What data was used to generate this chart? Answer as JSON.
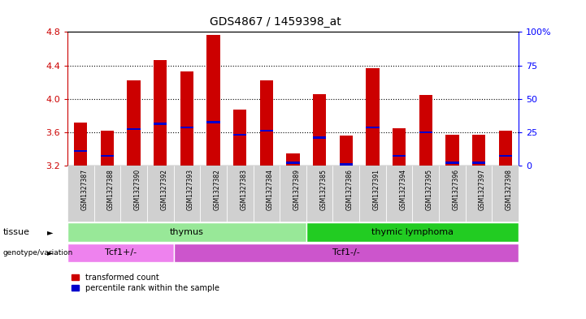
{
  "title": "GDS4867 / 1459398_at",
  "samples": [
    "GSM1327387",
    "GSM1327388",
    "GSM1327390",
    "GSM1327392",
    "GSM1327393",
    "GSM1327382",
    "GSM1327383",
    "GSM1327384",
    "GSM1327389",
    "GSM1327385",
    "GSM1327386",
    "GSM1327391",
    "GSM1327394",
    "GSM1327395",
    "GSM1327396",
    "GSM1327397",
    "GSM1327398"
  ],
  "bar_tops": [
    3.72,
    3.62,
    4.22,
    4.46,
    4.33,
    4.76,
    3.87,
    4.22,
    3.35,
    4.06,
    3.56,
    4.37,
    3.65,
    4.05,
    3.57,
    3.57,
    3.62
  ],
  "blue_marks": [
    3.38,
    3.32,
    3.64,
    3.7,
    3.66,
    3.72,
    3.57,
    3.62,
    3.24,
    3.54,
    3.22,
    3.66,
    3.32,
    3.6,
    3.24,
    3.24,
    3.32
  ],
  "bar_base": 3.2,
  "ymin": 3.2,
  "ymax": 4.8,
  "yticks": [
    3.2,
    3.6,
    4.0,
    4.4,
    4.8
  ],
  "right_yticks": [
    0,
    25,
    50,
    75,
    100
  ],
  "dotted_lines": [
    3.6,
    4.0,
    4.4
  ],
  "tissue_groups": [
    {
      "label": "thymus",
      "start": 0,
      "end": 9,
      "color": "#98E898"
    },
    {
      "label": "thymic lymphoma",
      "start": 9,
      "end": 17,
      "color": "#22CC22"
    }
  ],
  "genotype_groups": [
    {
      "label": "Tcf1+/-",
      "start": 0,
      "end": 4,
      "color": "#EE82EE"
    },
    {
      "label": "Tcf1-/-",
      "start": 4,
      "end": 17,
      "color": "#CC55CC"
    }
  ],
  "bar_color": "#CC0000",
  "blue_color": "#0000CC",
  "tick_bg_color": "#D0D0D0",
  "legend_labels": [
    "transformed count",
    "percentile rank within the sample"
  ],
  "title_fontsize": 10,
  "left_tick_color": "#CC0000",
  "right_tick_color": "#0000FF"
}
